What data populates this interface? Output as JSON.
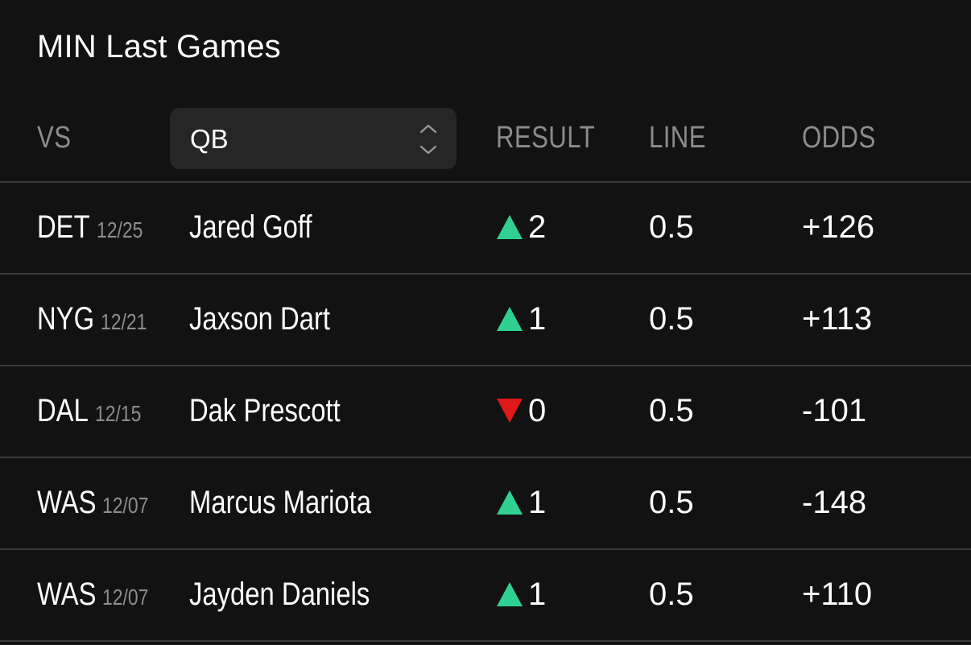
{
  "title": "MIN Last Games",
  "columns": {
    "vs": "VS",
    "qb": "QB",
    "result": "RESULT",
    "line": "LINE",
    "odds": "ODDS"
  },
  "colors": {
    "up": "#2fd092",
    "down": "#e01818"
  },
  "rows": [
    {
      "team": "DET",
      "date": "12/25",
      "qb": "Jared Goff",
      "result_icon": "triangle-up-icon",
      "result": "2",
      "line": "0.5",
      "odds": "+126"
    },
    {
      "team": "NYG",
      "date": "12/21",
      "qb": "Jaxson Dart",
      "result_icon": "triangle-up-icon",
      "result": "1",
      "line": "0.5",
      "odds": "+113"
    },
    {
      "team": "DAL",
      "date": "12/15",
      "qb": "Dak Prescott",
      "result_icon": "triangle-down-icon",
      "result": "0",
      "line": "0.5",
      "odds": "-101"
    },
    {
      "team": "WAS",
      "date": "12/07",
      "qb": "Marcus Mariota",
      "result_icon": "triangle-up-icon",
      "result": "1",
      "line": "0.5",
      "odds": "-148"
    },
    {
      "team": "WAS",
      "date": "12/07",
      "qb": "Jayden Daniels",
      "result_icon": "triangle-up-icon",
      "result": "1",
      "line": "0.5",
      "odds": "+110"
    }
  ]
}
